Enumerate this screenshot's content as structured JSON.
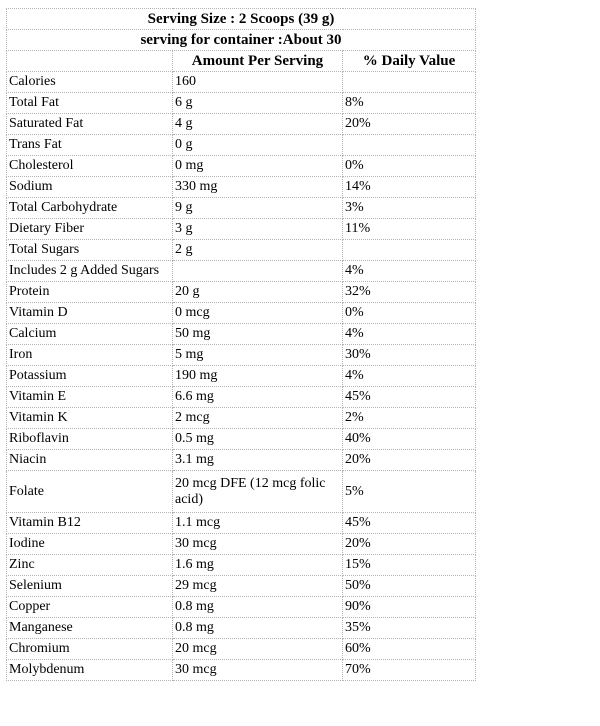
{
  "header": {
    "serving_size": "Serving Size : 2 Scoops (39 g)",
    "servings_per_container": "serving for container :About 30"
  },
  "columns": {
    "nutrient": "",
    "amount": "Amount Per Serving",
    "daily_value": "% Daily Value"
  },
  "rows": [
    {
      "nutrient": "Calories",
      "amount": "160",
      "dv": ""
    },
    {
      "nutrient": "Total Fat",
      "amount": "6 g",
      "dv": "8%"
    },
    {
      "nutrient": "Saturated Fat",
      "amount": "4 g",
      "dv": "20%"
    },
    {
      "nutrient": "Trans Fat",
      "amount": "0 g",
      "dv": ""
    },
    {
      "nutrient": "Cholesterol",
      "amount": "0 mg",
      "dv": "0%"
    },
    {
      "nutrient": "Sodium",
      "amount": "330 mg",
      "dv": "14%"
    },
    {
      "nutrient": "Total Carbohydrate",
      "amount": "9 g",
      "dv": "3%"
    },
    {
      "nutrient": "Dietary Fiber",
      "amount": "3 g",
      "dv": "11%"
    },
    {
      "nutrient": "Total Sugars",
      "amount": "2 g",
      "dv": ""
    },
    {
      "nutrient": "Includes 2 g Added Sugars",
      "amount": "",
      "dv": "4%"
    },
    {
      "nutrient": "Protein",
      "amount": "20 g",
      "dv": "32%"
    },
    {
      "nutrient": "Vitamin D",
      "amount": "0 mcg",
      "dv": "0%"
    },
    {
      "nutrient": "Calcium",
      "amount": "50 mg",
      "dv": "4%"
    },
    {
      "nutrient": "Iron",
      "amount": "5 mg",
      "dv": "30%"
    },
    {
      "nutrient": "Potassium",
      "amount": "190 mg",
      "dv": "4%"
    },
    {
      "nutrient": "Vitamin E",
      "amount": "6.6 mg",
      "dv": "45%"
    },
    {
      "nutrient": "Vitamin K",
      "amount": "2 mcg",
      "dv": "2%"
    },
    {
      "nutrient": "Riboflavin",
      "amount": "0.5 mg",
      "dv": "40%"
    },
    {
      "nutrient": "Niacin",
      "amount": "3.1 mg",
      "dv": "20%"
    },
    {
      "nutrient": "Folate",
      "amount": "20 mcg DFE (12 mcg folic acid)",
      "dv": "5%"
    },
    {
      "nutrient": "Vitamin B12",
      "amount": "1.1 mcg",
      "dv": "45%"
    },
    {
      "nutrient": "Iodine",
      "amount": "30 mcg",
      "dv": "20%"
    },
    {
      "nutrient": "Zinc",
      "amount": "1.6 mg",
      "dv": "15%"
    },
    {
      "nutrient": "Selenium",
      "amount": "29 mcg",
      "dv": "50%"
    },
    {
      "nutrient": "Copper",
      "amount": "0.8 mg",
      "dv": "90%"
    },
    {
      "nutrient": "Manganese",
      "amount": "0.8 mg",
      "dv": "35%"
    },
    {
      "nutrient": "Chromium",
      "amount": "20 mcg",
      "dv": "60%"
    },
    {
      "nutrient": "Molybdenum",
      "amount": "30 mcg",
      "dv": "70%"
    }
  ]
}
